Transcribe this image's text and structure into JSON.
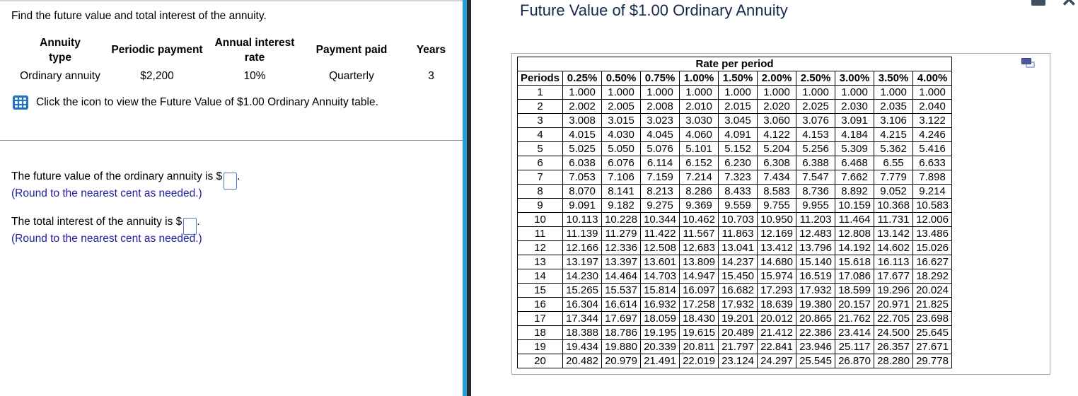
{
  "left_panel": {
    "prompt": "Find the future value and total interest of the annuity.",
    "details_table": {
      "columns": [
        {
          "header": "Annuity type",
          "value": "Ordinary annuity"
        },
        {
          "header": "Periodic payment",
          "value": "$2,200"
        },
        {
          "header": "Annual interest rate",
          "value": "10%"
        },
        {
          "header": "Payment paid",
          "value": "Quarterly"
        },
        {
          "header": "Years",
          "value": "3"
        }
      ]
    },
    "icon_instruction": "Click the icon to view the Future Value of $1.00 Ordinary Annuity table.",
    "questions": [
      {
        "text_before": "The future value of the ordinary annuity is $",
        "input_value": "",
        "text_after": ".",
        "note": "(Round to the nearest cent as needed.)"
      },
      {
        "text_before": "The total interest of the annuity is $",
        "input_value": "",
        "text_after": ".",
        "note": "(Round to the nearest cent as needed.)"
      }
    ]
  },
  "dialog": {
    "title": "Future Value of $1.00 Ordinary Annuity",
    "controls": {
      "close_glyph": "✕",
      "minimize_icon": "minimize-bar",
      "copy_icon": "overlapping-windows"
    },
    "table": {
      "caption": "Rate per period",
      "row_header": "Periods",
      "rate_columns": [
        "0.25%",
        "0.50%",
        "0.75%",
        "1.00%",
        "1.50%",
        "2.00%",
        "2.50%",
        "3.00%",
        "3.50%",
        "4.00%"
      ],
      "rows": [
        {
          "period": "1",
          "values": [
            "1.000",
            "1.000",
            "1.000",
            "1.000",
            "1.000",
            "1.000",
            "1.000",
            "1.000",
            "1.000",
            "1.000"
          ]
        },
        {
          "period": "2",
          "values": [
            "2.002",
            "2.005",
            "2.008",
            "2.010",
            "2.015",
            "2.020",
            "2.025",
            "2.030",
            "2.035",
            "2.040"
          ]
        },
        {
          "period": "3",
          "values": [
            "3.008",
            "3.015",
            "3.023",
            "3.030",
            "3.045",
            "3.060",
            "3.076",
            "3.091",
            "3.106",
            "3.122"
          ]
        },
        {
          "period": "4",
          "values": [
            "4.015",
            "4.030",
            "4.045",
            "4.060",
            "4.091",
            "4.122",
            "4.153",
            "4.184",
            "4.215",
            "4.246"
          ]
        },
        {
          "period": "5",
          "values": [
            "5.025",
            "5.050",
            "5.076",
            "5.101",
            "5.152",
            "5.204",
            "5.256",
            "5.309",
            "5.362",
            "5.416"
          ]
        },
        {
          "period": "6",
          "values": [
            "6.038",
            "6.076",
            "6.114",
            "6.152",
            "6.230",
            "6.308",
            "6.388",
            "6.468",
            "6.55",
            "6.633"
          ]
        },
        {
          "period": "7",
          "values": [
            "7.053",
            "7.106",
            "7.159",
            "7.214",
            "7.323",
            "7.434",
            "7.547",
            "7.662",
            "7.779",
            "7.898"
          ]
        },
        {
          "period": "8",
          "values": [
            "8.070",
            "8.141",
            "8.213",
            "8.286",
            "8.433",
            "8.583",
            "8.736",
            "8.892",
            "9.052",
            "9.214"
          ]
        },
        {
          "period": "9",
          "values": [
            "9.091",
            "9.182",
            "9.275",
            "9.369",
            "9.559",
            "9.755",
            "9.955",
            "10.159",
            "10.368",
            "10.583"
          ]
        },
        {
          "period": "10",
          "values": [
            "10.113",
            "10.228",
            "10.344",
            "10.462",
            "10.703",
            "10.950",
            "11.203",
            "11.464",
            "11.731",
            "12.006"
          ]
        },
        {
          "period": "11",
          "values": [
            "11.139",
            "11.279",
            "11.422",
            "11.567",
            "11.863",
            "12.169",
            "12.483",
            "12.808",
            "13.142",
            "13.486"
          ]
        },
        {
          "period": "12",
          "values": [
            "12.166",
            "12.336",
            "12.508",
            "12.683",
            "13.041",
            "13.412",
            "13.796",
            "14.192",
            "14.602",
            "15.026"
          ]
        },
        {
          "period": "13",
          "values": [
            "13.197",
            "13.397",
            "13.601",
            "13.809",
            "14.237",
            "14.680",
            "15.140",
            "15.618",
            "16.113",
            "16.627"
          ]
        },
        {
          "period": "14",
          "values": [
            "14.230",
            "14.464",
            "14.703",
            "14.947",
            "15.450",
            "15.974",
            "16.519",
            "17.086",
            "17.677",
            "18.292"
          ]
        },
        {
          "period": "15",
          "values": [
            "15.265",
            "15.537",
            "15.814",
            "16.097",
            "16.682",
            "17.293",
            "17.932",
            "18.599",
            "19.296",
            "20.024"
          ]
        },
        {
          "period": "16",
          "values": [
            "16.304",
            "16.614",
            "16.932",
            "17.258",
            "17.932",
            "18.639",
            "19.380",
            "20.157",
            "20.971",
            "21.825"
          ]
        },
        {
          "period": "17",
          "values": [
            "17.344",
            "17.697",
            "18.059",
            "18.430",
            "19.201",
            "20.012",
            "20.865",
            "21.762",
            "22.705",
            "23.698"
          ]
        },
        {
          "period": "18",
          "values": [
            "18.388",
            "18.786",
            "19.195",
            "19.615",
            "20.489",
            "21.412",
            "22.386",
            "23.414",
            "24.500",
            "25.645"
          ]
        },
        {
          "period": "19",
          "values": [
            "19.434",
            "19.880",
            "20.339",
            "20.811",
            "21.797",
            "22.841",
            "23.946",
            "25.117",
            "26.357",
            "27.671"
          ]
        },
        {
          "period": "20",
          "values": [
            "20.482",
            "20.979",
            "21.491",
            "22.019",
            "23.124",
            "24.297",
            "25.545",
            "26.870",
            "28.280",
            "29.778"
          ]
        }
      ]
    }
  },
  "colors": {
    "split_divider_blue": "#2a9edd",
    "split_divider_dark": "#262c36",
    "title_navy": "#15294d",
    "note_blue": "#20209f",
    "table_icon_blue": "#2273c3",
    "input_border_blue": "#4a7cc2"
  }
}
